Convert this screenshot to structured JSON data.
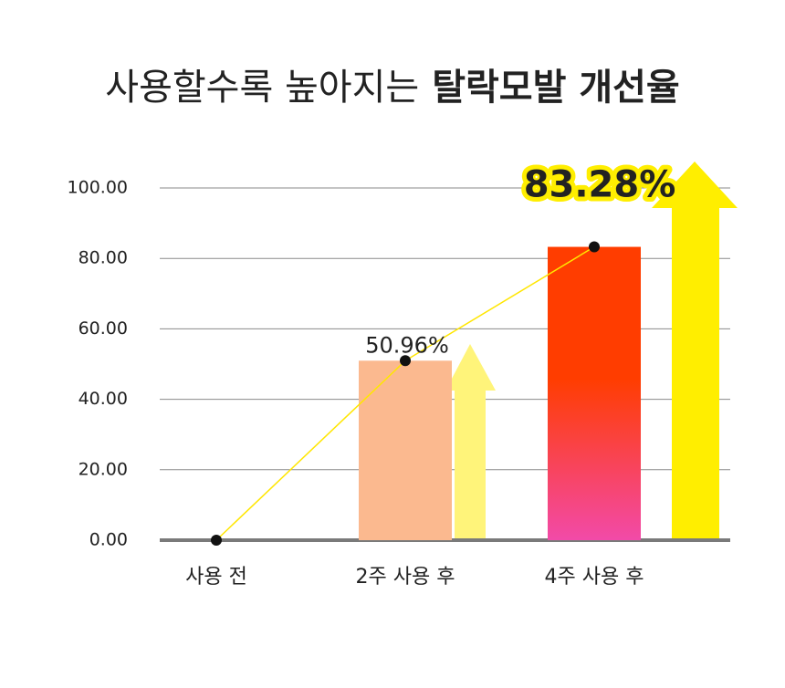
{
  "chart_data": {
    "type": "bar",
    "title": [
      "사용할수록 높아지는",
      "탈락모발 개선율"
    ],
    "categories": [
      "사용 전",
      "2주 사용 후",
      "4주 사용 후"
    ],
    "values": [
      0,
      50.96,
      83.28
    ],
    "value_labels": [
      null,
      "50.96%",
      "83.28%"
    ],
    "colors": [
      "#fbb98f",
      "#fbb98f",
      "#ff3d00"
    ],
    "line_color": "#ffe600",
    "ylim": [
      0,
      100
    ],
    "yticks": [
      {
        "value": 0,
        "label": "0.00"
      },
      {
        "value": 20,
        "label": "20.00"
      },
      {
        "value": 40,
        "label": "40.00"
      },
      {
        "value": 60,
        "label": "60.00"
      },
      {
        "value": 80,
        "label": "80.00"
      },
      {
        "value": 100,
        "label": "100.00"
      }
    ],
    "grid": true
  }
}
